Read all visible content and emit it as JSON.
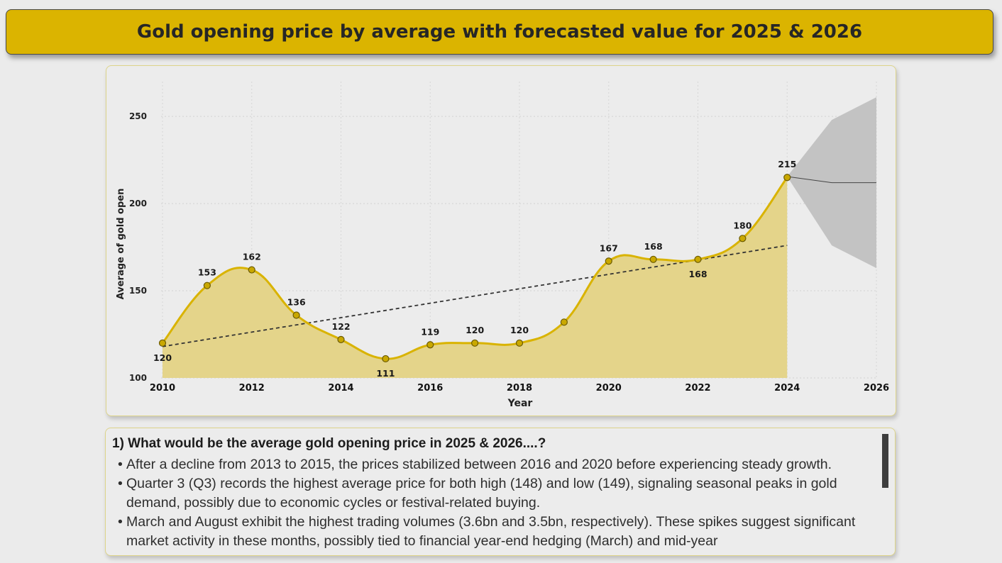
{
  "header": {
    "title": "Gold opening price by average with forecasted value for 2025 & 2026"
  },
  "chart_data": {
    "type": "area",
    "title": "",
    "xlabel": "Year",
    "ylabel": "Average of gold open",
    "x": [
      2010,
      2011,
      2012,
      2013,
      2014,
      2015,
      2016,
      2017,
      2018,
      2019,
      2020,
      2021,
      2022,
      2023,
      2024
    ],
    "values": [
      120,
      153,
      162,
      136,
      122,
      111,
      119,
      120,
      120,
      132,
      167,
      168,
      168,
      180,
      215
    ],
    "data_labels": [
      {
        "x": 2010,
        "text": "120",
        "pos": "below"
      },
      {
        "x": 2011,
        "text": "153",
        "pos": "above"
      },
      {
        "x": 2012,
        "text": "162",
        "pos": "above"
      },
      {
        "x": 2013,
        "text": "136",
        "pos": "above"
      },
      {
        "x": 2014,
        "text": "122",
        "pos": "above"
      },
      {
        "x": 2015,
        "text": "111",
        "pos": "below"
      },
      {
        "x": 2016,
        "text": "119",
        "pos": "above"
      },
      {
        "x": 2017,
        "text": "120",
        "pos": "above"
      },
      {
        "x": 2018,
        "text": "120",
        "pos": "above"
      },
      {
        "x": 2020,
        "text": "167",
        "pos": "above"
      },
      {
        "x": 2021,
        "text": "168",
        "pos": "above"
      },
      {
        "x": 2022,
        "text": "168",
        "pos": "below"
      },
      {
        "x": 2023,
        "text": "180",
        "pos": "above"
      },
      {
        "x": 2024,
        "text": "215",
        "pos": "above"
      }
    ],
    "trendline": {
      "x": [
        2010,
        2024
      ],
      "y": [
        118,
        176
      ]
    },
    "forecast": {
      "x": [
        2024,
        2025,
        2026
      ],
      "values": [
        215.5,
        212,
        212
      ],
      "upper": [
        215.5,
        248,
        261
      ],
      "lower": [
        215.5,
        176,
        163
      ]
    },
    "xticks": [
      2010,
      2012,
      2014,
      2016,
      2018,
      2020,
      2022,
      2024,
      2026
    ],
    "yticks": [
      100,
      150,
      200,
      250
    ],
    "xlim": [
      2010,
      2026
    ],
    "ylim": [
      100,
      270
    ],
    "grid": true,
    "legend": "none",
    "colors": {
      "line": "#d9b300",
      "area": "#e4d48a",
      "marker": "#c9a800",
      "trend": "#333333",
      "forecast_band": "#c3c3c3",
      "forecast_line": "#444444"
    }
  },
  "insights": {
    "heading": "1) What would be the average gold opening price in 2025 & 2026....?",
    "bullet_char": "•",
    "bullets": [
      "After a decline from 2013 to 2015, the prices stabilized between 2016 and 2020 before experiencing steady growth.",
      "Quarter 3 (Q3) records the highest average price for both high (148) and low (149), signaling seasonal peaks in gold demand, possibly due to economic cycles or festival-related buying.",
      "March and August exhibit the highest trading volumes (3.6bn and 3.5bn, respectively). These spikes suggest significant market activity in these months, possibly tied to financial year-end hedging (March) and mid-year"
    ]
  }
}
